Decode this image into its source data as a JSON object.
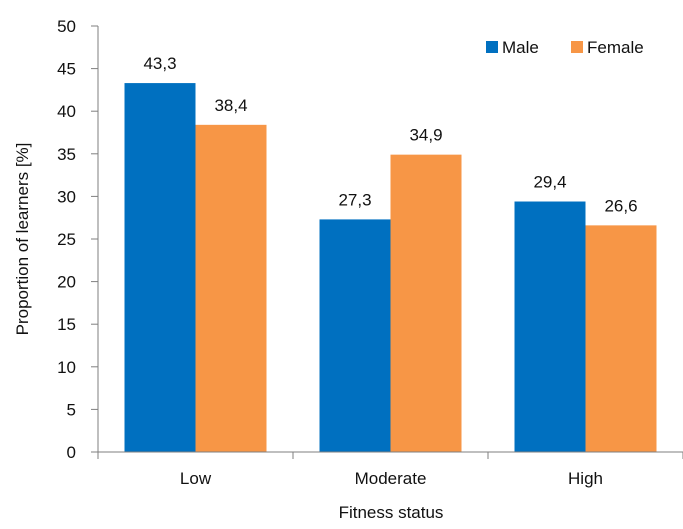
{
  "chart_data": {
    "type": "bar",
    "categories": [
      "Low",
      "Moderate",
      "High"
    ],
    "series": [
      {
        "name": "Male",
        "values": [
          43.3,
          27.3,
          29.4
        ],
        "labels": [
          "43,3",
          "27,3",
          "29,4"
        ],
        "color": "#0070C0"
      },
      {
        "name": "Female",
        "values": [
          38.4,
          34.9,
          26.6
        ],
        "labels": [
          "38,4",
          "34,9",
          "26,6"
        ],
        "color": "#F79646"
      }
    ],
    "title": "",
    "xlabel": "Fitness status",
    "ylabel": "Proportion of learners [%]",
    "ylim": [
      0,
      50
    ],
    "yticks": [
      0,
      5,
      10,
      15,
      20,
      25,
      30,
      35,
      40,
      45,
      50
    ],
    "grid": false,
    "legend_position": "top-right"
  }
}
